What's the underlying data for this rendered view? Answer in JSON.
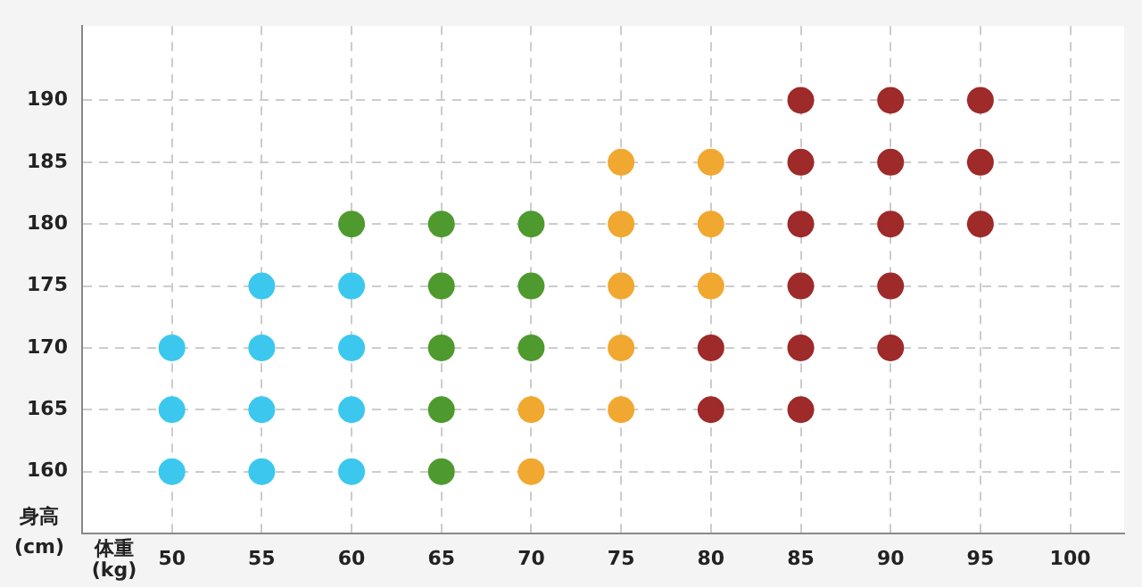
{
  "chart_data": {
    "type": "scatter",
    "xlabel": "体重(kg)",
    "ylabel": "身高(cm)",
    "xlim": [
      45,
      103
    ],
    "ylim": [
      155,
      196
    ],
    "xticks": [
      50,
      55,
      60,
      65,
      70,
      75,
      80,
      85,
      90,
      95,
      100
    ],
    "yticks": [
      160,
      165,
      170,
      175,
      180,
      185,
      190
    ],
    "grid": true,
    "legend": false,
    "marker": "circle",
    "series": [
      {
        "color": "#3cc8ee",
        "x": [
          50,
          50,
          50,
          55,
          55,
          55,
          55,
          60,
          60,
          60,
          60
        ],
        "values": [
          160,
          165,
          170,
          160,
          165,
          170,
          175,
          160,
          165,
          170,
          175
        ]
      },
      {
        "color": "#4e9a2e",
        "x": [
          60,
          65,
          65,
          65,
          65,
          65,
          70,
          70,
          70
        ],
        "values": [
          180,
          160,
          165,
          170,
          175,
          180,
          170,
          175,
          180
        ]
      },
      {
        "color": "#f0a830",
        "x": [
          70,
          70,
          75,
          75,
          75,
          75,
          75,
          80,
          80,
          80
        ],
        "values": [
          160,
          165,
          165,
          170,
          175,
          180,
          185,
          175,
          180,
          185
        ]
      },
      {
        "color": "#9e2a2a",
        "x": [
          80,
          80,
          85,
          85,
          85,
          85,
          85,
          85,
          90,
          90,
          90,
          90,
          90,
          95,
          95,
          95
        ],
        "values": [
          165,
          170,
          165,
          170,
          175,
          180,
          185,
          190,
          170,
          175,
          180,
          185,
          190,
          180,
          185,
          190
        ]
      }
    ]
  }
}
